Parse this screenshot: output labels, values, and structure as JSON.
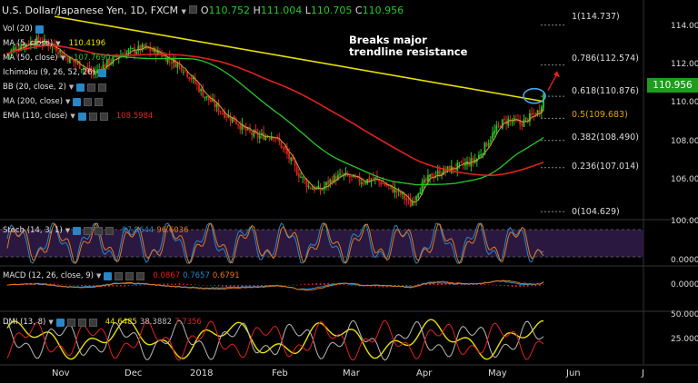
{
  "header": {
    "symbol": "U.S. Dollar/Japanese Yen, 1D, FXCM",
    "open_label": "O",
    "open": "110.752",
    "high_label": "H",
    "high": "111.004",
    "low_label": "L",
    "low": "110.705",
    "close_label": "C",
    "close": "110.956"
  },
  "indicators": {
    "vol": {
      "label": "Vol (20)"
    },
    "ma5": {
      "label": "MA (5, close)",
      "value": "110.4196",
      "color": "#e8e000"
    },
    "ma50": {
      "label": "MA (50, close)",
      "value": "107.7690",
      "color": "#29c72a"
    },
    "ichimoku": {
      "label": "Ichimoku (9, 26, 52, 26)"
    },
    "bb": {
      "label": "BB (20, close, 2)"
    },
    "ma200": {
      "label": "MA (200, close)"
    },
    "ema": {
      "label": "EMA (110, close)",
      "value": "108.5984",
      "color": "#e0221f"
    }
  },
  "annotation": {
    "line1": "Breaks major",
    "line2": "trendline resistance"
  },
  "price_axis": {
    "ticks": [
      "114.000",
      "112.000",
      "110.000",
      "108.000",
      "106.000"
    ],
    "last_price": "110.956"
  },
  "fib_levels": [
    {
      "label": "1(114.737)",
      "value": 114.737
    },
    {
      "label": "0.786(112.574)",
      "value": 112.574
    },
    {
      "label": "0.618(110.876)",
      "value": 110.876
    },
    {
      "label": "0.5(109.683)",
      "value": 109.683
    },
    {
      "label": "0.382(108.490)",
      "value": 108.49
    },
    {
      "label": "0.236(107.014)",
      "value": 107.014
    },
    {
      "label": "0(104.629)",
      "value": 104.629
    }
  ],
  "stoch": {
    "label": "Stoch (14, 3, 1)",
    "k": "97.9644",
    "d": "96.6036",
    "k_color": "#2a86c6",
    "d_color": "#e07a20",
    "ticks": [
      "100.0000",
      "0.0000"
    ]
  },
  "macd": {
    "label": "MACD (12, 26, close, 9)",
    "hist": "0.0867",
    "macd": "0.7657",
    "signal": "0.6791",
    "hist_color": "#e0221f",
    "macd_color": "#2a86c6",
    "signal_color": "#e07a20",
    "ticks": [
      "0.0000"
    ]
  },
  "dmi": {
    "label": "DMI (13, 8)",
    "adx": "44.6485",
    "plus_di": "38.3882",
    "minus_di": "7.7356",
    "adx_color": "#e8e000",
    "plus_color": "#bbbbbb",
    "minus_color": "#e0221f",
    "ticks": [
      "50.0000",
      "25.0000"
    ]
  },
  "x_axis": [
    "Nov",
    "Dec",
    "2018",
    "Feb",
    "Mar",
    "Apr",
    "May",
    "Jun",
    "J"
  ],
  "colors": {
    "up": "#26c826",
    "down": "#e0221f",
    "trendline": "#e8e000",
    "stoch_band": "#2b1840"
  },
  "chart_data": {
    "type": "candlestick",
    "title": "U.S. Dollar/Japanese Yen, 1D, FXCM",
    "x_labels": [
      "Nov",
      "Dec",
      "2018",
      "Feb",
      "Mar",
      "Apr",
      "May",
      "Jun",
      "J"
    ],
    "ylim": [
      104.3,
      115.6
    ],
    "close_path": [
      [
        0,
        113.2
      ],
      [
        8,
        113.7
      ],
      [
        16,
        113.9
      ],
      [
        24,
        113.6
      ],
      [
        30,
        113.0
      ],
      [
        38,
        112.5
      ],
      [
        44,
        112.1
      ],
      [
        50,
        112.6
      ],
      [
        56,
        113.0
      ],
      [
        62,
        113.3
      ],
      [
        70,
        113.5
      ],
      [
        78,
        113.2
      ],
      [
        84,
        112.8
      ],
      [
        90,
        112.4
      ],
      [
        96,
        111.6
      ],
      [
        100,
        111.0
      ],
      [
        104,
        110.6
      ],
      [
        110,
        110.0
      ],
      [
        116,
        109.6
      ],
      [
        122,
        109.0
      ],
      [
        128,
        108.7
      ],
      [
        136,
        108.8
      ],
      [
        142,
        107.9
      ],
      [
        148,
        106.8
      ],
      [
        154,
        106.0
      ],
      [
        160,
        105.8
      ],
      [
        166,
        106.4
      ],
      [
        172,
        106.6
      ],
      [
        180,
        106.3
      ],
      [
        188,
        106.4
      ],
      [
        196,
        105.9
      ],
      [
        202,
        105.5
      ],
      [
        206,
        105.0
      ],
      [
        210,
        105.8
      ],
      [
        216,
        106.5
      ],
      [
        222,
        106.8
      ],
      [
        228,
        107.0
      ],
      [
        234,
        107.2
      ],
      [
        240,
        107.5
      ],
      [
        246,
        108.5
      ],
      [
        252,
        109.4
      ],
      [
        256,
        109.6
      ],
      [
        262,
        109.4
      ],
      [
        268,
        109.8
      ],
      [
        272,
        110.1
      ],
      [
        274,
        110.956
      ]
    ],
    "series": [
      {
        "name": "MA (5, close)",
        "value": 110.4196
      },
      {
        "name": "MA (50, close)",
        "value": 107.769
      },
      {
        "name": "EMA (110, close)",
        "value": 108.5984
      }
    ]
  }
}
